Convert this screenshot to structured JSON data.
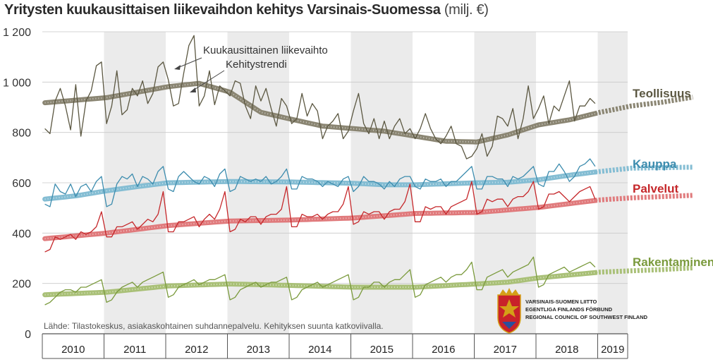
{
  "chart_data": {
    "type": "line",
    "title": "Yritysten kuukausittaisen liikevaihdon kehitys Varsinais-Suomessa",
    "unit": "(milj. €)",
    "ylim": [
      0,
      1200
    ],
    "yticks": [
      0,
      200,
      400,
      600,
      800,
      1000,
      1200
    ],
    "ytick_labels": [
      "0",
      "200",
      "400",
      "600",
      "800",
      "1 000",
      "1 200"
    ],
    "x_categories": [
      "2010",
      "2011",
      "2012",
      "2013",
      "2014",
      "2015",
      "2016",
      "2017",
      "2018",
      "2019"
    ],
    "grid": true,
    "alternating_year_bands": true,
    "annotations": [
      "Kuukausittainen liikevaihto",
      "Kehitystrendi"
    ],
    "source": "Lähde: Tilastokeskus, asiakaskohtainen suhdannepalvelu. Kehityksen suunta katkoviivalla.",
    "series": [
      {
        "name": "Teollisuus",
        "color": "#5b5741",
        "trend_color": "#8a8572",
        "trend_knots": [
          [
            0,
            918
          ],
          [
            12,
            938
          ],
          [
            24,
            982
          ],
          [
            30,
            995
          ],
          [
            36,
            960
          ],
          [
            42,
            880
          ],
          [
            48,
            852
          ],
          [
            54,
            825
          ],
          [
            60,
            815
          ],
          [
            66,
            805
          ],
          [
            72,
            785
          ],
          [
            78,
            765
          ],
          [
            84,
            762
          ],
          [
            90,
            790
          ],
          [
            96,
            830
          ],
          [
            102,
            850
          ],
          [
            108,
            880
          ],
          [
            114,
            905
          ],
          [
            120,
            920
          ],
          [
            126,
            940
          ]
        ],
        "monthly_values": [
          815,
          795,
          925,
          975,
          905,
          810,
          990,
          785,
          925,
          965,
          1065,
          1080,
          835,
          905,
          1045,
          870,
          890,
          975,
          945,
          1005,
          915,
          955,
          1060,
          1080,
          1010,
          905,
          915,
          1035,
          1145,
          1185,
          905,
          945,
          1045,
          910,
          985,
          965,
          945,
          1005,
          995,
          905,
          855,
          985,
          925,
          975,
          895,
          825,
          935,
          905,
          835,
          855,
          955,
          865,
          915,
          885,
          775,
          825,
          845,
          875,
          775,
          805,
          885,
          955,
          835,
          795,
          855,
          775,
          845,
          775,
          825,
          855,
          795,
          815,
          775,
          815,
          875,
          815,
          775,
          755,
          785,
          825,
          755,
          745,
          695,
          705,
          735,
          795,
          705,
          745,
          865,
          855,
          825,
          895,
          775,
          855,
          985,
          855,
          895,
          945,
          835,
          905,
          885,
          945,
          1005,
          845,
          905,
          905,
          935,
          915
        ]
      },
      {
        "name": "Kauppa",
        "color": "#3c8cae",
        "trend_color": "#84bdd3",
        "trend_knots": [
          [
            0,
            535
          ],
          [
            6,
            548
          ],
          [
            12,
            568
          ],
          [
            18,
            585
          ],
          [
            24,
            600
          ],
          [
            36,
            605
          ],
          [
            48,
            603
          ],
          [
            60,
            598
          ],
          [
            66,
            592
          ],
          [
            72,
            592
          ],
          [
            84,
            600
          ],
          [
            90,
            602
          ],
          [
            96,
            612
          ],
          [
            102,
            630
          ],
          [
            108,
            645
          ],
          [
            114,
            658
          ],
          [
            120,
            660
          ],
          [
            126,
            662
          ]
        ],
        "monthly_values": [
          515,
          505,
          595,
          565,
          555,
          595,
          545,
          585,
          595,
          565,
          605,
          625,
          505,
          515,
          595,
          625,
          615,
          635,
          585,
          625,
          615,
          595,
          645,
          665,
          575,
          565,
          625,
          645,
          625,
          605,
          595,
          625,
          615,
          585,
          635,
          655,
          565,
          575,
          625,
          615,
          605,
          615,
          605,
          625,
          595,
          605,
          625,
          655,
          575,
          575,
          625,
          615,
          615,
          605,
          585,
          605,
          595,
          585,
          615,
          625,
          565,
          585,
          625,
          605,
          605,
          595,
          575,
          605,
          585,
          615,
          625,
          625,
          585,
          575,
          615,
          605,
          605,
          615,
          585,
          605,
          605,
          625,
          645,
          665,
          575,
          575,
          625,
          625,
          615,
          615,
          585,
          625,
          615,
          625,
          645,
          665,
          595,
          585,
          645,
          645,
          675,
          645,
          605,
          625,
          665,
          675,
          695,
          665
        ]
      },
      {
        "name": "Palvelut",
        "color": "#c5272a",
        "trend_color": "#e07a7c",
        "trend_knots": [
          [
            0,
            378
          ],
          [
            12,
            400
          ],
          [
            24,
            430
          ],
          [
            36,
            448
          ],
          [
            48,
            452
          ],
          [
            60,
            460
          ],
          [
            72,
            478
          ],
          [
            84,
            482
          ],
          [
            96,
            502
          ],
          [
            108,
            532
          ],
          [
            114,
            540
          ],
          [
            120,
            545
          ],
          [
            126,
            550
          ]
        ],
        "monthly_values": [
          325,
          335,
          385,
          375,
          385,
          395,
          375,
          405,
          395,
          405,
          425,
          485,
          385,
          385,
          425,
          425,
          435,
          445,
          415,
          435,
          455,
          445,
          475,
          565,
          405,
          405,
          445,
          445,
          455,
          465,
          425,
          455,
          475,
          455,
          495,
          565,
          405,
          415,
          455,
          445,
          465,
          465,
          435,
          465,
          475,
          475,
          495,
          585,
          425,
          425,
          475,
          465,
          465,
          475,
          455,
          475,
          485,
          485,
          515,
          585,
          435,
          445,
          485,
          475,
          485,
          485,
          455,
          485,
          495,
          495,
          525,
          595,
          445,
          445,
          505,
          495,
          505,
          505,
          475,
          505,
          515,
          525,
          535,
          605,
          475,
          485,
          535,
          525,
          535,
          535,
          505,
          535,
          545,
          545,
          565,
          605,
          495,
          505,
          555,
          555,
          565,
          545,
          525,
          545,
          565,
          575,
          585,
          535
        ]
      },
      {
        "name": "Rakentaminen",
        "color": "#7a9a3c",
        "trend_color": "#a9c077",
        "trend_knots": [
          [
            0,
            155
          ],
          [
            12,
            165
          ],
          [
            24,
            190
          ],
          [
            36,
            198
          ],
          [
            48,
            192
          ],
          [
            60,
            185
          ],
          [
            72,
            185
          ],
          [
            84,
            198
          ],
          [
            90,
            205
          ],
          [
            96,
            222
          ],
          [
            108,
            245
          ],
          [
            120,
            255
          ],
          [
            126,
            262
          ]
        ],
        "monthly_values": [
          115,
          125,
          145,
          165,
          175,
          175,
          165,
          185,
          185,
          195,
          205,
          215,
          125,
          135,
          165,
          185,
          195,
          205,
          185,
          205,
          215,
          225,
          235,
          245,
          145,
          155,
          185,
          195,
          205,
          215,
          195,
          205,
          215,
          215,
          225,
          235,
          135,
          145,
          175,
          185,
          195,
          205,
          185,
          195,
          205,
          205,
          215,
          225,
          135,
          145,
          175,
          185,
          195,
          205,
          185,
          195,
          205,
          215,
          225,
          235,
          135,
          145,
          185,
          185,
          205,
          205,
          185,
          205,
          215,
          215,
          235,
          255,
          145,
          155,
          195,
          205,
          215,
          225,
          205,
          225,
          235,
          235,
          255,
          285,
          175,
          175,
          225,
          235,
          245,
          255,
          225,
          245,
          255,
          265,
          275,
          305,
          185,
          195,
          235,
          245,
          255,
          265,
          245,
          255,
          265,
          275,
          285,
          265
        ]
      }
    ]
  },
  "org_logo": {
    "line1": "VARSINAIS-SUOMEN LIITTO",
    "line2": "EGENTLIGA FINLANDS FÖRBUND",
    "line3": "REGIONAL COUNCIL OF SOUTHWEST FINLAND"
  }
}
